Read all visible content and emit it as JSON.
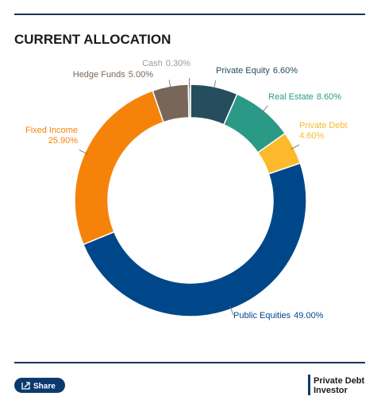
{
  "chart_data": {
    "type": "pie",
    "title": "CURRENT ALLOCATION",
    "categories": [
      "Private Equity",
      "Real Estate",
      "Private Debt",
      "Public Equities",
      "Fixed Income",
      "Hedge Funds",
      "Cash"
    ],
    "values": [
      6.6,
      8.6,
      4.6,
      49.0,
      25.9,
      5.0,
      0.3
    ],
    "value_labels": [
      "6.60%",
      "8.60%",
      "4.60%",
      "49.00%",
      "25.90%",
      "5.00%",
      "0.30%"
    ],
    "colors": [
      "#264d5e",
      "#2a9a87",
      "#fbb92b",
      "#00478a",
      "#f5830a",
      "#786659",
      "#9a9a9a"
    ]
  },
  "footer": {
    "share": "Share",
    "brand_line1": "Private Debt",
    "brand_line2": "Investor"
  }
}
